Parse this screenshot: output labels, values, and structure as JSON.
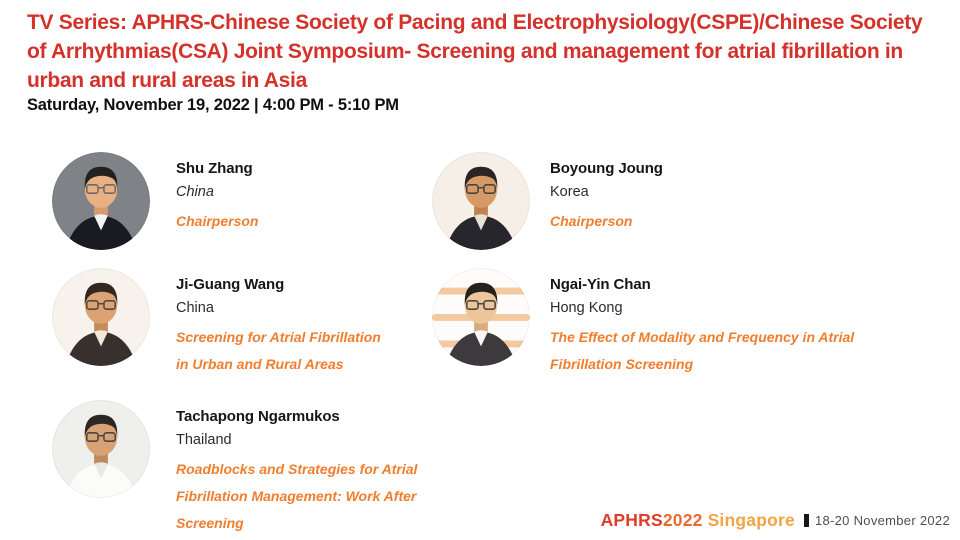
{
  "header": {
    "title": "TV Series: APHRS-Chinese Society of Pacing and Electrophysiology(CSPE)/Chinese Society of Arrhythmias(CSA) Joint Symposium- Screening and management for atrial fibrillation in urban and rural areas in Asia",
    "datetime": "Saturday, November 19, 2022 | 4:00 PM - 5:10 PM"
  },
  "colors": {
    "title_red": "#D5312B",
    "accent_orange": "#F07E2E",
    "logo_red": "#E23A28",
    "logo_orange": "#EB6A2E",
    "logo_amber": "#F2A444",
    "footer_text": "#4F4F52"
  },
  "speakers": [
    {
      "name": "Shu Zhang",
      "country": "China",
      "country_italic": true,
      "topic": "Chairperson",
      "topic_lines": [
        "Chairperson"
      ],
      "photo": {
        "bg": "#7f8287",
        "skin": "#e8b183",
        "skin2": "#d79b6c",
        "suit": "#1a1b20",
        "shirt": "#f2f4f6",
        "hair": "#23211f",
        "glasses": "#6b6a66"
      }
    },
    {
      "name": "Boyoung Joung",
      "country": "Korea",
      "country_italic": false,
      "topic": "Chairperson",
      "topic_lines": [
        "Chairperson"
      ],
      "photo": {
        "bg": "#f5efe7",
        "skin": "#d69a68",
        "skin2": "#c08050",
        "suit": "#26262c",
        "shirt": "#e8e2d4",
        "hair": "#2a2522",
        "glasses": "#4a453f"
      }
    },
    {
      "name": "Ji-Guang Wang",
      "country": "China",
      "country_italic": false,
      "topic": "Screening for Atrial Fibrillation in Urban and Rural Areas",
      "topic_lines": [
        "Screening for Atrial Fibrillation",
        "in Urban and Rural Areas"
      ],
      "photo": {
        "bg": "#f7f3ec",
        "skin": "#dba273",
        "skin2": "#c58b5b",
        "suit": "#38302c",
        "shirt": "#efe9da",
        "hair": "#33281f",
        "glasses": "#55493d"
      }
    },
    {
      "name": "Ngai-Yin Chan",
      "country": "Hong Kong",
      "country_italic": false,
      "topic": "The Effect of Modality and Frequency in Atrial Fibrillation Screening",
      "topic_lines": [
        "The Effect of Modality and Frequency in Atrial",
        "Fibrillation Screening"
      ],
      "photo": {
        "bg": "#fdfcfa",
        "stripes": "#f5c9a0",
        "skin": "#ecc59b",
        "skin2": "#d9ab7c",
        "suit": "#3c3a3d",
        "shirt": "#f7f7f5",
        "hair": "#25211e",
        "glasses": "#4c4741"
      }
    },
    {
      "name": "Tachapong Ngarmukos",
      "country": "Thailand",
      "country_italic": false,
      "topic": "Roadblocks and Strategies for Atrial Fibrillation Management: Work After Screening",
      "topic_lines": [
        "Roadblocks and Strategies for Atrial",
        "Fibrillation Management: Work After",
        "Screening"
      ],
      "photo": {
        "bg": "#efefec",
        "skin": "#d6a276",
        "skin2": "#c08a5c",
        "suit": "#fbfbf9",
        "shirt": "#e9e9e6",
        "hair": "#2b2724",
        "glasses": "#4a4742"
      }
    }
  ],
  "footer": {
    "logo": {
      "aphrs": "APHRS",
      "year": "2022",
      "city": "Singapore"
    },
    "dates": "18-20 November 2022"
  }
}
